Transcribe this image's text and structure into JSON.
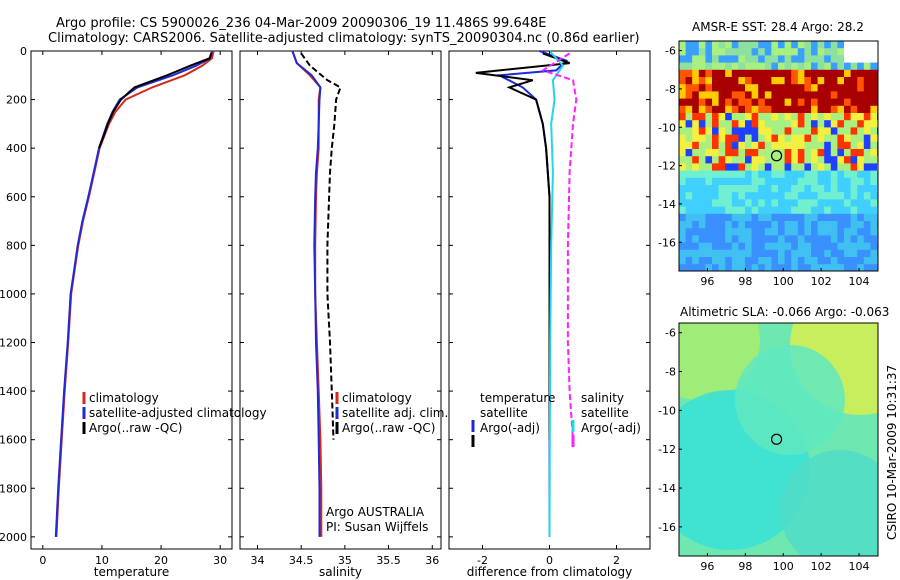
{
  "title": {
    "line1": "Argo profile: CS 5900026_236 04-Mar-2009 20090306_19 11.486S 99.648E",
    "line2": "Climatology: CARS2006. Satellite-adjusted climatology: synTS_20090304.nc (0.86d earlier)"
  },
  "side_label": "CSIRO 10-Mar-2009 10:31:37",
  "colors": {
    "climatology": "#d42a1c",
    "satellite": "#1f2ad6",
    "argo": "#000000",
    "sal_diff": "#ff1fff",
    "sat_sal": "#22d6e8",
    "marker": "#ff8800"
  },
  "chart_data": [
    {
      "type": "line",
      "xlabel": "temperature",
      "xlim": [
        -2,
        32
      ],
      "ylim": [
        0,
        2050
      ],
      "y_inverted": true,
      "xticks": [
        0,
        10,
        20,
        30
      ],
      "yticks": [
        0,
        200,
        400,
        600,
        800,
        1000,
        1200,
        1400,
        1600,
        1800,
        2000
      ],
      "legend": [
        "climatology",
        "satellite-adjusted climatology",
        "Argo(..raw -QC)"
      ],
      "series": [
        {
          "name": "climatology",
          "color_key": "climatology",
          "x": [
            28.9,
            28.6,
            27.0,
            24.0,
            18.5,
            14.0,
            12.3,
            11.2,
            10.4,
            9.6,
            8.7,
            7.8,
            6.8,
            6.0,
            5.4,
            4.8,
            4.3,
            3.7,
            3.2,
            2.7,
            2.3
          ],
          "y": [
            0,
            30,
            60,
            100,
            150,
            200,
            250,
            300,
            350,
            400,
            500,
            600,
            700,
            800,
            900,
            1000,
            1200,
            1400,
            1600,
            1800,
            2000
          ]
        },
        {
          "name": "satellite-adjusted climatology",
          "color_key": "satellite",
          "x": [
            28.6,
            28.3,
            26.0,
            22.0,
            16.0,
            13.0,
            11.8,
            10.9,
            10.2,
            9.5,
            8.6,
            7.7,
            6.7,
            5.9,
            5.3,
            4.7,
            4.2,
            3.6,
            3.1,
            2.6,
            2.2
          ],
          "y": [
            0,
            30,
            60,
            100,
            150,
            200,
            250,
            300,
            350,
            400,
            500,
            600,
            700,
            800,
            900,
            1000,
            1200,
            1400,
            1600,
            1800,
            2000
          ]
        },
        {
          "name": "Argo(..raw -QC)",
          "color_key": "argo",
          "x": [
            28.5,
            28.2,
            25.0,
            21.0,
            15.5,
            13.2,
            11.9,
            11.0,
            10.3,
            9.5
          ],
          "y": [
            10,
            30,
            60,
            100,
            150,
            200,
            250,
            300,
            350,
            400
          ]
        }
      ]
    },
    {
      "type": "line",
      "xlabel": "salinity",
      "xlim": [
        33.8,
        36.1
      ],
      "ylim": [
        0,
        2050
      ],
      "y_inverted": true,
      "xticks": [
        34,
        34.5,
        35,
        35.5,
        36
      ],
      "legend": [
        "climatology",
        "satellite adj. clim.",
        "Argo(..raw -QC)"
      ],
      "annotation": [
        "Argo AUSTRALIA",
        "PI: Susan Wijffels"
      ],
      "series": [
        {
          "name": "climatology",
          "color_key": "climatology",
          "x": [
            34.4,
            34.45,
            34.6,
            34.72,
            34.7,
            34.7,
            34.7,
            34.68,
            34.67,
            34.66,
            34.66,
            34.68,
            34.7,
            34.72,
            34.73,
            34.73
          ],
          "y": [
            0,
            50,
            100,
            150,
            200,
            300,
            400,
            500,
            600,
            800,
            1000,
            1200,
            1400,
            1600,
            1800,
            2000
          ]
        },
        {
          "name": "satellite adj. clim.",
          "color_key": "satellite",
          "x": [
            34.4,
            34.45,
            34.62,
            34.72,
            34.71,
            34.7,
            34.69,
            34.67,
            34.66,
            34.65,
            34.66,
            34.67,
            34.69,
            34.7,
            34.71,
            34.71
          ],
          "y": [
            0,
            50,
            100,
            150,
            200,
            300,
            400,
            500,
            600,
            800,
            1000,
            1200,
            1400,
            1600,
            1800,
            2000
          ]
        },
        {
          "name": "Argo(..raw -QC)",
          "color_key": "argo",
          "x": [
            34.5,
            34.6,
            34.8,
            34.95,
            34.9,
            34.88,
            34.85,
            34.83,
            34.82,
            34.8,
            34.8,
            34.83,
            34.85,
            34.87
          ],
          "y": [
            10,
            60,
            120,
            150,
            200,
            300,
            400,
            500,
            600,
            800,
            1000,
            1200,
            1400,
            1600
          ],
          "dashed": true
        }
      ]
    },
    {
      "type": "line",
      "xlabel": "difference from climatology",
      "xlim": [
        -3,
        3
      ],
      "ylim": [
        0,
        2050
      ],
      "y_inverted": true,
      "xticks": [
        -2,
        0,
        2
      ],
      "legend_left": [
        "temperature",
        "satellite",
        "Argo(-adj)"
      ],
      "legend_right": [
        "salinity",
        "satellite",
        "Argo(-adj)"
      ],
      "series": [
        {
          "name": "temperature satellite",
          "color_key": "satellite",
          "x": [
            -0.3,
            0.5,
            0.2,
            -1.5,
            -0.8,
            -0.4,
            -0.2,
            -0.1,
            0,
            0,
            0,
            0
          ],
          "y": [
            0,
            40,
            80,
            100,
            150,
            200,
            300,
            400,
            600,
            1000,
            1500,
            2000
          ]
        },
        {
          "name": "temperature Argo(-adj)",
          "color_key": "argo",
          "x": [
            -0.2,
            0.6,
            -2.2,
            -0.5,
            -1.2,
            -0.4,
            -0.2,
            -0.1,
            0,
            0,
            0
          ],
          "y": [
            10,
            50,
            90,
            120,
            150,
            200,
            300,
            400,
            600,
            1000,
            1600
          ]
        },
        {
          "name": "salinity satellite",
          "color_key": "sat_sal",
          "x": [
            0,
            0.4,
            0.1,
            0.15,
            0.05,
            0.1,
            0.05,
            0.02,
            0.01,
            0
          ],
          "y": [
            0,
            60,
            120,
            200,
            300,
            500,
            800,
            1200,
            1600,
            2000
          ]
        },
        {
          "name": "salinity Argo(-adj)",
          "color_key": "sal_diff",
          "x": [
            0.6,
            -0.2,
            0.7,
            0.8,
            0.7,
            0.6,
            0.55,
            0.55,
            0.6,
            0.7
          ],
          "y": [
            10,
            80,
            120,
            200,
            300,
            500,
            800,
            1200,
            1400,
            1600
          ],
          "dashed": true
        }
      ]
    },
    {
      "type": "heatmap",
      "title": "AMSR-E SST: 28.4 Argo: 28.2",
      "xlim": [
        94.5,
        105
      ],
      "ylim": [
        -17.5,
        -5.5
      ],
      "xticks": [
        96,
        98,
        100,
        102,
        104
      ],
      "yticks": [
        -6,
        -8,
        -10,
        -12,
        -14,
        -16
      ],
      "marker": {
        "lon": 99.648,
        "lat": -11.486
      }
    },
    {
      "type": "heatmap",
      "title": "Altimetric SLA: -0.066 Argo: -0.063",
      "xlim": [
        94.5,
        105
      ],
      "ylim": [
        -17.5,
        -5.5
      ],
      "xticks": [
        96,
        98,
        100,
        102,
        104
      ],
      "yticks": [
        -6,
        -8,
        -10,
        -12,
        -14,
        -16
      ],
      "marker": {
        "lon": 99.648,
        "lat": -11.486
      }
    }
  ]
}
